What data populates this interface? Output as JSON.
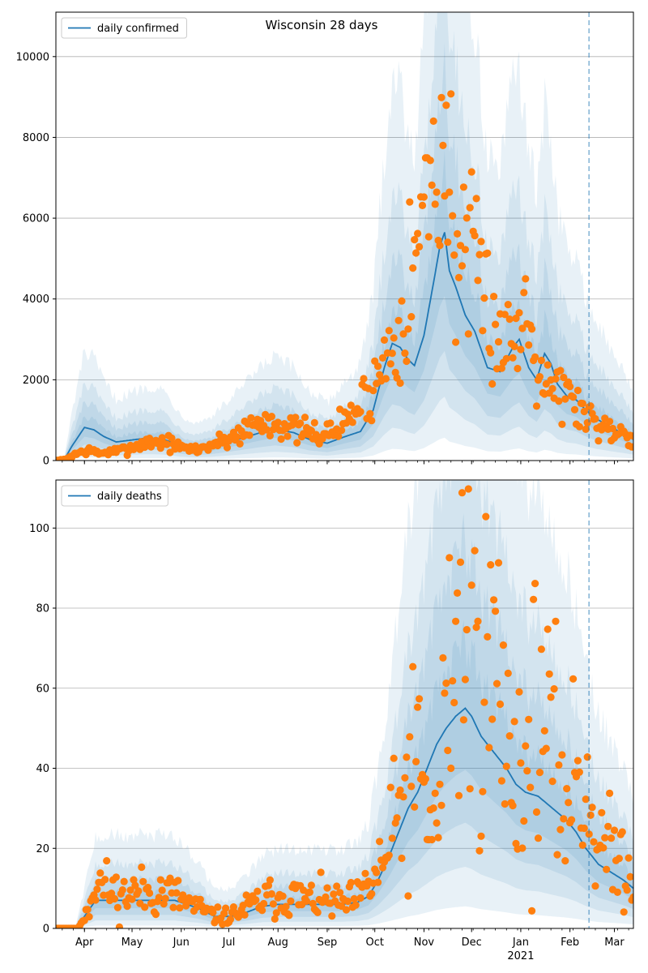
{
  "title": "Wisconsin 28 days",
  "colors": {
    "model_line": "#1f77b4",
    "observed_points": "#ff7f0e",
    "band": "#1f77b4",
    "grid": "#b0b0b0",
    "vline": "#1f77b4"
  },
  "x_axis": {
    "month_labels": [
      "Apr",
      "May",
      "Jun",
      "Jul",
      "Aug",
      "Sep",
      "Oct",
      "Nov",
      "Dec",
      "Jan",
      "Feb",
      "Mar"
    ],
    "month_days": [
      18,
      48,
      79,
      109,
      140,
      171,
      201,
      232,
      262,
      293,
      324,
      352
    ],
    "year_label": "2021",
    "year_label_day": 293,
    "range": [
      0,
      364
    ]
  },
  "chart_data": [
    {
      "type": "line",
      "legend": "daily confirmed",
      "legend_position": "top-left",
      "grid": "horizontal",
      "ylim": [
        0,
        11100
      ],
      "yticks": [
        0,
        2000,
        4000,
        6000,
        8000,
        10000
      ],
      "forecast_start_day": 336,
      "model_knots": [
        [
          0,
          0
        ],
        [
          5,
          0
        ],
        [
          10,
          350
        ],
        [
          18,
          820
        ],
        [
          24,
          760
        ],
        [
          30,
          600
        ],
        [
          38,
          460
        ],
        [
          48,
          510
        ],
        [
          58,
          560
        ],
        [
          66,
          540
        ],
        [
          72,
          470
        ],
        [
          78,
          350
        ],
        [
          88,
          280
        ],
        [
          98,
          330
        ],
        [
          108,
          440
        ],
        [
          118,
          560
        ],
        [
          128,
          680
        ],
        [
          138,
          780
        ],
        [
          150,
          690
        ],
        [
          160,
          520
        ],
        [
          171,
          430
        ],
        [
          182,
          590
        ],
        [
          192,
          720
        ],
        [
          200,
          1250
        ],
        [
          207,
          2300
        ],
        [
          212,
          2900
        ],
        [
          217,
          2800
        ],
        [
          222,
          2500
        ],
        [
          226,
          2350
        ],
        [
          232,
          3100
        ],
        [
          238,
          4400
        ],
        [
          242,
          5300
        ],
        [
          245,
          5650
        ],
        [
          248,
          4700
        ],
        [
          252,
          4300
        ],
        [
          258,
          3600
        ],
        [
          264,
          3200
        ],
        [
          272,
          2300
        ],
        [
          280,
          2200
        ],
        [
          288,
          2800
        ],
        [
          292,
          3000
        ],
        [
          298,
          2300
        ],
        [
          303,
          2000
        ],
        [
          308,
          2650
        ],
        [
          312,
          2400
        ],
        [
          316,
          1900
        ],
        [
          322,
          1600
        ],
        [
          328,
          1500
        ],
        [
          334,
          1250
        ],
        [
          340,
          1050
        ],
        [
          350,
          820
        ],
        [
          358,
          660
        ],
        [
          364,
          520
        ]
      ],
      "band_scales": [
        [
          0.72,
          1.3
        ],
        [
          0.48,
          1.75
        ],
        [
          0.28,
          2.3
        ],
        [
          0.1,
          3.3
        ]
      ],
      "observed_knots": [
        [
          0,
          0
        ],
        [
          6,
          30
        ],
        [
          12,
          160
        ],
        [
          20,
          250
        ],
        [
          28,
          180
        ],
        [
          40,
          240
        ],
        [
          50,
          360
        ],
        [
          60,
          470
        ],
        [
          70,
          450
        ],
        [
          80,
          300
        ],
        [
          90,
          280
        ],
        [
          100,
          420
        ],
        [
          110,
          550
        ],
        [
          120,
          800
        ],
        [
          130,
          940
        ],
        [
          140,
          960
        ],
        [
          150,
          760
        ],
        [
          160,
          680
        ],
        [
          171,
          660
        ],
        [
          180,
          900
        ],
        [
          190,
          1300
        ],
        [
          198,
          1700
        ],
        [
          205,
          2300
        ],
        [
          212,
          3000
        ],
        [
          218,
          3600
        ],
        [
          225,
          4700
        ],
        [
          232,
          6300
        ],
        [
          238,
          7400
        ],
        [
          243,
          7900
        ],
        [
          248,
          6800
        ],
        [
          252,
          5500
        ],
        [
          258,
          4800
        ],
        [
          264,
          4600
        ],
        [
          272,
          3900
        ],
        [
          280,
          3100
        ],
        [
          288,
          2900
        ],
        [
          296,
          3900
        ],
        [
          302,
          2900
        ],
        [
          308,
          2100
        ],
        [
          314,
          1900
        ],
        [
          320,
          1700
        ],
        [
          328,
          1400
        ],
        [
          334,
          1150
        ],
        [
          342,
          900
        ],
        [
          352,
          780
        ],
        [
          364,
          600
        ]
      ],
      "observed_noise": 0.22,
      "observed_seed": 7
    },
    {
      "type": "line",
      "legend": "daily deaths",
      "legend_position": "top-left",
      "grid": "horizontal",
      "ylim": [
        0,
        112
      ],
      "yticks": [
        0,
        20,
        40,
        60,
        80,
        100
      ],
      "forecast_start_day": 336,
      "model_knots": [
        [
          0,
          0
        ],
        [
          12,
          0
        ],
        [
          18,
          3
        ],
        [
          25,
          7
        ],
        [
          32,
          7
        ],
        [
          45,
          7
        ],
        [
          60,
          7
        ],
        [
          75,
          7
        ],
        [
          90,
          5
        ],
        [
          100,
          3
        ],
        [
          110,
          3
        ],
        [
          120,
          4
        ],
        [
          130,
          5.5
        ],
        [
          140,
          6
        ],
        [
          150,
          6
        ],
        [
          160,
          6
        ],
        [
          170,
          6
        ],
        [
          180,
          6
        ],
        [
          190,
          6.5
        ],
        [
          197,
          8
        ],
        [
          203,
          12
        ],
        [
          210,
          18
        ],
        [
          216,
          24
        ],
        [
          222,
          30
        ],
        [
          228,
          34
        ],
        [
          234,
          40
        ],
        [
          240,
          46
        ],
        [
          246,
          50
        ],
        [
          252,
          53
        ],
        [
          258,
          55
        ],
        [
          262,
          53
        ],
        [
          268,
          48
        ],
        [
          276,
          44
        ],
        [
          284,
          40
        ],
        [
          290,
          36
        ],
        [
          296,
          34
        ],
        [
          304,
          33
        ],
        [
          310,
          31
        ],
        [
          316,
          29
        ],
        [
          322,
          27
        ],
        [
          328,
          24
        ],
        [
          334,
          20
        ],
        [
          342,
          16
        ],
        [
          350,
          14
        ],
        [
          358,
          12
        ],
        [
          364,
          10
        ]
      ],
      "band_scales": [
        [
          0.72,
          1.3
        ],
        [
          0.48,
          1.75
        ],
        [
          0.28,
          2.3
        ],
        [
          0.1,
          3.3
        ]
      ],
      "observed_knots": [
        [
          0,
          0
        ],
        [
          14,
          0
        ],
        [
          20,
          5
        ],
        [
          25,
          12
        ],
        [
          32,
          10
        ],
        [
          40,
          8
        ],
        [
          50,
          9
        ],
        [
          60,
          9
        ],
        [
          70,
          9
        ],
        [
          80,
          7
        ],
        [
          90,
          5
        ],
        [
          100,
          3
        ],
        [
          110,
          3
        ],
        [
          120,
          5
        ],
        [
          130,
          7
        ],
        [
          140,
          8
        ],
        [
          150,
          8
        ],
        [
          160,
          7
        ],
        [
          170,
          7
        ],
        [
          180,
          6
        ],
        [
          190,
          7
        ],
        [
          196,
          10
        ],
        [
          202,
          13
        ],
        [
          208,
          18
        ],
        [
          214,
          25
        ],
        [
          220,
          34
        ],
        [
          228,
          40
        ],
        [
          234,
          30
        ],
        [
          240,
          24
        ],
        [
          244,
          45
        ],
        [
          248,
          62
        ],
        [
          254,
          75
        ],
        [
          260,
          78
        ],
        [
          266,
          72
        ],
        [
          272,
          64
        ],
        [
          278,
          65
        ],
        [
          284,
          46
        ],
        [
          290,
          45
        ],
        [
          296,
          35
        ],
        [
          302,
          52
        ],
        [
          308,
          50
        ],
        [
          314,
          42
        ],
        [
          322,
          32
        ],
        [
          328,
          40
        ],
        [
          334,
          36
        ],
        [
          342,
          22
        ],
        [
          350,
          18
        ],
        [
          358,
          17
        ],
        [
          364,
          12
        ]
      ],
      "observed_noise": 0.35,
      "observed_seed": 11
    }
  ]
}
